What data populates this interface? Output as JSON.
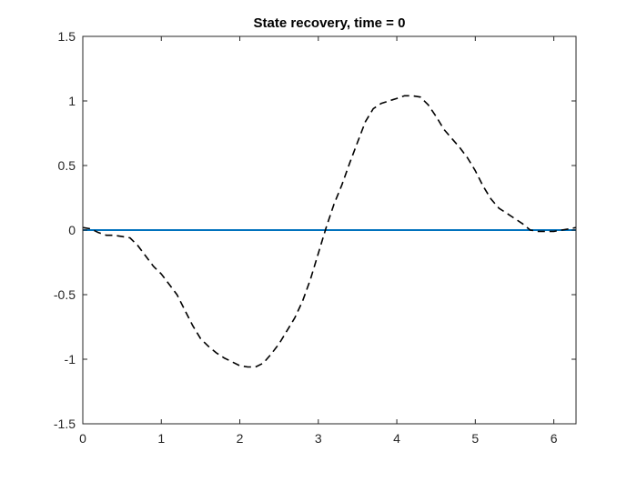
{
  "chart_data": {
    "type": "line",
    "title": "State recovery, time = 0",
    "xlabel": "",
    "ylabel": "",
    "xlim": [
      0,
      6.283
    ],
    "ylim": [
      -1.5,
      1.5
    ],
    "xticks": [
      0,
      1,
      2,
      3,
      4,
      5,
      6
    ],
    "yticks": [
      -1.5,
      -1,
      -0.5,
      0,
      0.5,
      1,
      1.5
    ],
    "xtick_labels": [
      "0",
      "1",
      "2",
      "3",
      "4",
      "5",
      "6"
    ],
    "ytick_labels": [
      "-1.5",
      "-1",
      "-0.5",
      "0",
      "0.5",
      "1",
      "1.5"
    ],
    "grid": false,
    "box": true,
    "series": [
      {
        "style": "solid",
        "color": "#0072BD",
        "x": [
          0,
          6.283
        ],
        "y": [
          0,
          0
        ]
      },
      {
        "style": "dashed",
        "color": "#000000",
        "x": [
          0,
          0.1,
          0.2,
          0.3,
          0.4,
          0.5,
          0.6,
          0.7,
          0.8,
          0.9,
          1.0,
          1.1,
          1.2,
          1.3,
          1.4,
          1.5,
          1.6,
          1.7,
          1.8,
          1.9,
          2.0,
          2.1,
          2.2,
          2.3,
          2.4,
          2.5,
          2.6,
          2.7,
          2.8,
          2.9,
          3.0,
          3.1,
          3.2,
          3.3,
          3.4,
          3.5,
          3.6,
          3.7,
          3.8,
          3.9,
          4.0,
          4.1,
          4.2,
          4.3,
          4.4,
          4.5,
          4.6,
          4.7,
          4.8,
          4.9,
          5.0,
          5.1,
          5.2,
          5.3,
          5.4,
          5.5,
          5.6,
          5.7,
          5.8,
          5.9,
          6.0,
          6.1,
          6.2,
          6.283
        ],
        "y": [
          0.02,
          0.01,
          -0.02,
          -0.04,
          -0.04,
          -0.05,
          -0.06,
          -0.12,
          -0.2,
          -0.28,
          -0.34,
          -0.42,
          -0.5,
          -0.62,
          -0.74,
          -0.84,
          -0.9,
          -0.95,
          -0.99,
          -1.02,
          -1.05,
          -1.06,
          -1.06,
          -1.03,
          -0.96,
          -0.88,
          -0.78,
          -0.68,
          -0.55,
          -0.38,
          -0.18,
          0.02,
          0.2,
          0.35,
          0.52,
          0.68,
          0.84,
          0.94,
          0.98,
          1.0,
          1.02,
          1.04,
          1.04,
          1.03,
          0.97,
          0.88,
          0.78,
          0.71,
          0.64,
          0.56,
          0.46,
          0.34,
          0.24,
          0.17,
          0.13,
          0.09,
          0.05,
          0.0,
          -0.01,
          -0.01,
          -0.01,
          0.0,
          0.01,
          0.02
        ]
      }
    ]
  }
}
